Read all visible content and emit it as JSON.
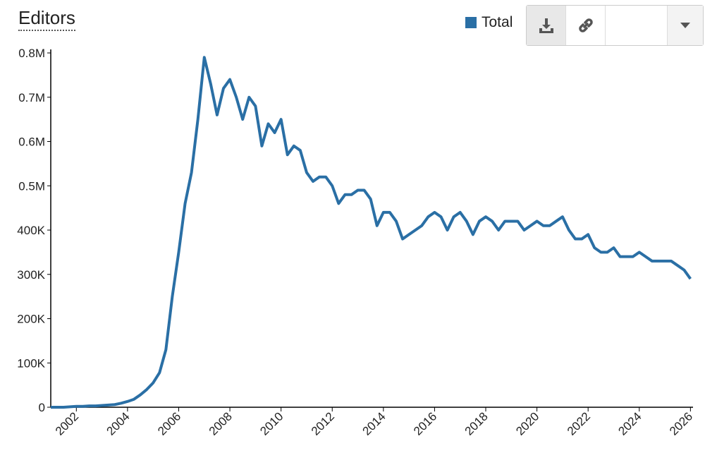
{
  "chart_data": {
    "type": "line",
    "title": "Editors",
    "xlim": [
      2001,
      2026.1
    ],
    "xticks": [
      2002,
      2004,
      2006,
      2008,
      2010,
      2012,
      2014,
      2016,
      2018,
      2020,
      2022,
      2024,
      2026
    ],
    "ylim": [
      0,
      800000
    ],
    "yticks": [
      0,
      {
        "value": 100000,
        "label": "100K"
      },
      {
        "value": 200000,
        "label": "200K"
      },
      {
        "value": 300000,
        "label": "300K"
      },
      {
        "value": 400000,
        "label": "400K"
      },
      {
        "value": 500000,
        "label": "0.5M"
      },
      {
        "value": 600000,
        "label": "0.6M"
      },
      {
        "value": 700000,
        "label": "0.7M"
      },
      {
        "value": 800000,
        "label": "0.8M"
      }
    ],
    "x": [
      2001,
      2001.25,
      2001.5,
      2001.75,
      2002,
      2002.25,
      2002.5,
      2002.75,
      2003,
      2003.25,
      2003.5,
      2003.75,
      2004,
      2004.25,
      2004.5,
      2004.75,
      2005,
      2005.25,
      2005.5,
      2005.75,
      2006,
      2006.25,
      2006.5,
      2006.75,
      2007,
      2007.25,
      2007.5,
      2007.75,
      2008,
      2008.25,
      2008.5,
      2008.75,
      2009,
      2009.25,
      2009.5,
      2009.75,
      2010,
      2010.25,
      2010.5,
      2010.75,
      2011,
      2011.25,
      2011.5,
      2011.75,
      2012,
      2012.25,
      2012.5,
      2012.75,
      2013,
      2013.25,
      2013.5,
      2013.75,
      2014,
      2014.25,
      2014.5,
      2014.75,
      2015,
      2015.25,
      2015.5,
      2015.75,
      2016,
      2016.25,
      2016.5,
      2016.75,
      2017,
      2017.25,
      2017.5,
      2017.75,
      2018,
      2018.25,
      2018.5,
      2018.75,
      2019,
      2019.25,
      2019.5,
      2019.75,
      2020,
      2020.25,
      2020.5,
      2020.75,
      2021,
      2021.25,
      2021.5,
      2021.75,
      2022,
      2022.25,
      2022.5,
      2022.75,
      2023,
      2023.25,
      2023.5,
      2023.75,
      2024,
      2024.25,
      2024.5,
      2024.75,
      2025,
      2025.25,
      2025.5,
      2025.75,
      2026
    ],
    "series": [
      {
        "name": "Total",
        "color": "#2a6fa5",
        "values": [
          0,
          0,
          0,
          1000,
          2000,
          2000,
          3000,
          3000,
          4000,
          5000,
          6000,
          9000,
          13000,
          18000,
          28000,
          40000,
          55000,
          78000,
          130000,
          250000,
          350000,
          460000,
          530000,
          650000,
          790000,
          730000,
          660000,
          720000,
          740000,
          700000,
          650000,
          700000,
          680000,
          590000,
          640000,
          620000,
          650000,
          570000,
          590000,
          580000,
          530000,
          510000,
          520000,
          520000,
          500000,
          460000,
          480000,
          480000,
          490000,
          490000,
          470000,
          410000,
          440000,
          440000,
          420000,
          380000,
          390000,
          400000,
          410000,
          430000,
          440000,
          430000,
          400000,
          430000,
          440000,
          420000,
          390000,
          420000,
          430000,
          420000,
          400000,
          420000,
          420000,
          420000,
          400000,
          410000,
          420000,
          410000,
          410000,
          420000,
          430000,
          400000,
          380000,
          380000,
          390000,
          360000,
          350000,
          350000,
          360000,
          340000,
          340000,
          340000,
          350000,
          340000,
          330000,
          330000,
          330000,
          330000,
          320000,
          310000,
          290000
        ]
      }
    ]
  }
}
